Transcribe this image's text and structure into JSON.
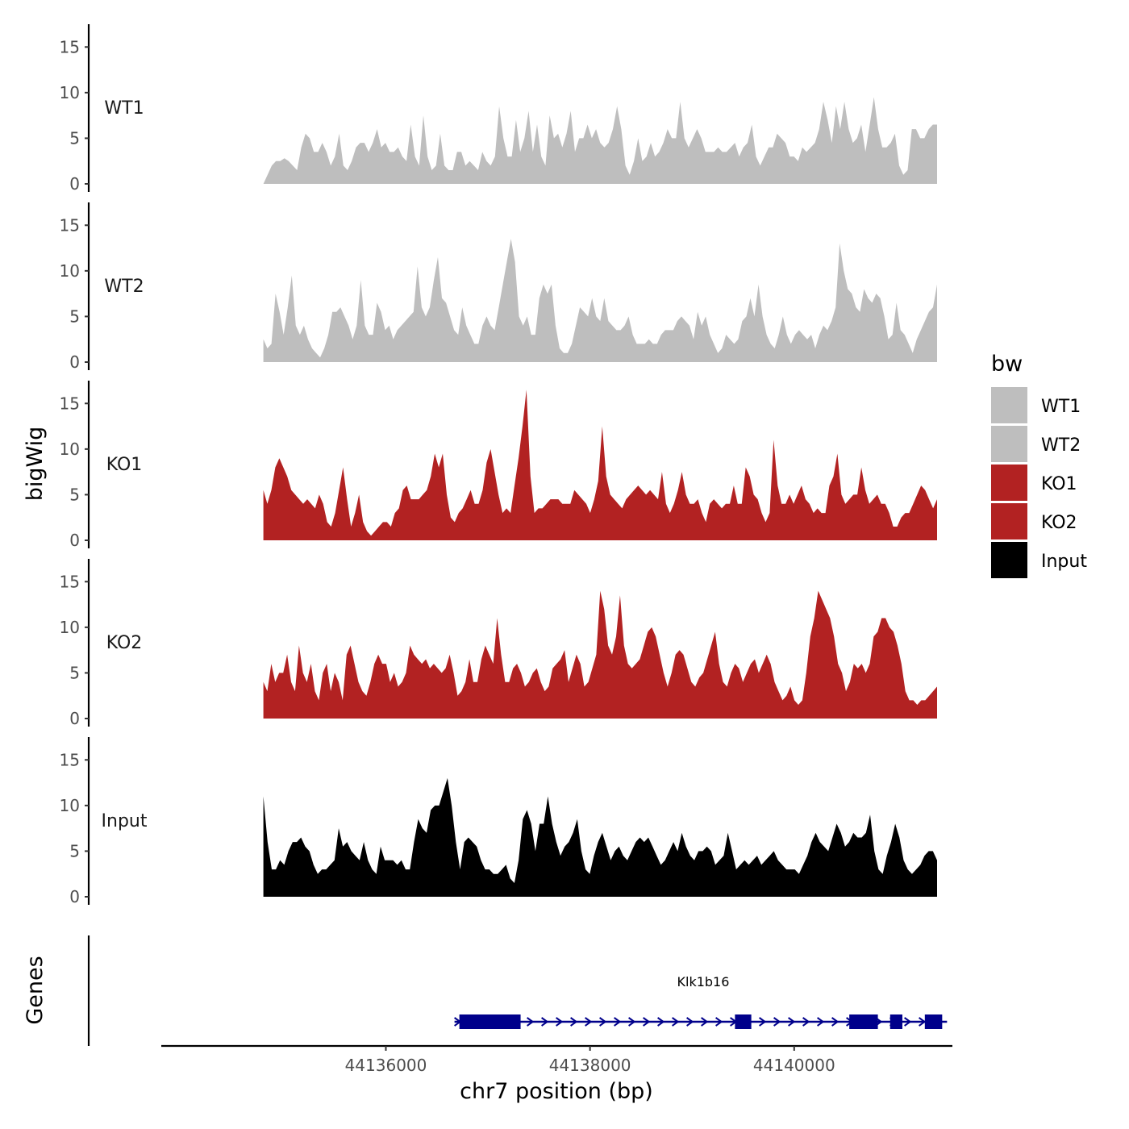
{
  "chart_data": {
    "type": "area",
    "region": {
      "chrom": "chr7",
      "start": 44134800,
      "end": 44141400
    },
    "xlim": [
      44133800,
      44141550
    ],
    "ylim": [
      0,
      17.5
    ],
    "y_ticks": [
      0,
      5,
      10,
      15
    ],
    "y_tick_labels": [
      "0",
      "5",
      "10",
      "15"
    ],
    "x_ticks": [
      44136000,
      44138000,
      44140000
    ],
    "x_tick_labels": [
      "44136000",
      "44138000",
      "44140000"
    ],
    "ylabel": "bigWig",
    "genes_label": "Genes",
    "xlabel": "chr7 position (bp)",
    "legend": {
      "title": "bw",
      "items": [
        {
          "label": "WT1",
          "color": "#BEBEBE"
        },
        {
          "label": "WT2",
          "color": "#BEBEBE"
        },
        {
          "label": "KO1",
          "color": "#B22222"
        },
        {
          "label": "KO2",
          "color": "#B22222"
        },
        {
          "label": "Input",
          "color": "#000000"
        }
      ]
    },
    "series": [
      {
        "name": "WT1",
        "color": "#BEBEBE",
        "values": [
          0,
          1,
          2,
          2.5,
          2.5,
          2.8,
          2.5,
          2,
          1.5,
          4,
          5.5,
          5,
          3.5,
          3.5,
          4.5,
          3.5,
          2,
          3,
          5.5,
          2,
          1.5,
          2.5,
          4,
          4.5,
          4.5,
          3.5,
          4.5,
          6,
          4,
          4.5,
          3.5,
          3.5,
          4,
          3,
          2.5,
          6.5,
          3,
          2,
          7.5,
          3,
          1.5,
          2,
          5.5,
          2,
          1.5,
          1.5,
          3.5,
          3.5,
          2,
          2.5,
          2,
          1.5,
          3.5,
          2.5,
          2,
          3,
          8.5,
          5,
          3,
          3,
          7,
          3.5,
          5,
          8,
          3.5,
          6.5,
          3,
          2,
          7.5,
          5,
          5.5,
          4,
          5.5,
          8,
          3.5,
          5,
          5,
          6.5,
          5,
          6,
          4.5,
          4,
          4.5,
          6,
          8.5,
          6,
          2,
          1,
          2.5,
          5,
          2.5,
          3,
          4.5,
          3,
          3.5,
          4.5,
          6,
          5,
          5,
          9,
          5,
          4,
          5,
          6,
          5,
          3.5,
          3.5,
          3.5,
          4,
          3.5,
          3.5,
          4,
          4.5,
          3,
          4,
          4.5,
          6.5,
          3,
          2,
          3,
          4,
          4,
          5.5,
          5,
          4.5,
          3,
          3,
          2.5,
          4,
          3.5,
          4,
          4.5,
          6,
          9,
          7,
          4.5,
          8.5,
          6,
          9,
          6,
          4.5,
          5,
          6.5,
          3.5,
          6.5,
          9.5,
          6,
          4,
          4,
          4.5,
          5.5,
          2,
          1,
          1.5,
          6,
          6,
          5,
          5,
          6,
          6.5,
          6.5
        ]
      },
      {
        "name": "WT2",
        "color": "#BEBEBE",
        "values": [
          2.5,
          1.5,
          2,
          7.5,
          5.5,
          3,
          6,
          9.5,
          4,
          3,
          4,
          2.5,
          1.5,
          1,
          0.5,
          1.5,
          3,
          5.5,
          5.5,
          6,
          5,
          4,
          2.5,
          4,
          9,
          4,
          3,
          3,
          6.5,
          5.5,
          3.5,
          4,
          2.5,
          3.5,
          4,
          4.5,
          5,
          5.5,
          10.5,
          6,
          5,
          6,
          9,
          11.5,
          7,
          6.5,
          5,
          3.5,
          3,
          6,
          4,
          3,
          2,
          2,
          4,
          5,
          4,
          3.5,
          6,
          8.5,
          11,
          13.5,
          11,
          5,
          4,
          5,
          3,
          3,
          7,
          8.5,
          7.5,
          8.5,
          4,
          1.5,
          1,
          1,
          2,
          4,
          6,
          5.5,
          5,
          7,
          5,
          4.5,
          7,
          4.5,
          4,
          3.5,
          3.5,
          4,
          5,
          3,
          2,
          2,
          2,
          2.5,
          2,
          2,
          3,
          3.5,
          3.5,
          3.5,
          4.5,
          5,
          4.5,
          4,
          2.5,
          5.5,
          4,
          5,
          3,
          2,
          1,
          1.5,
          3,
          2.5,
          2,
          2.5,
          4.5,
          5,
          7,
          5,
          8.5,
          5,
          3,
          2,
          1.5,
          3,
          5,
          3,
          2,
          3,
          3.5,
          3,
          2.5,
          3,
          1.5,
          3,
          4,
          3.5,
          4.5,
          6,
          13,
          10,
          8,
          7.5,
          6,
          5.5,
          8,
          7,
          6.5,
          7.5,
          7,
          5,
          2.5,
          3,
          6.5,
          3.5,
          3,
          2,
          1,
          2.5,
          3.5,
          4.5,
          5.5,
          6,
          8.5
        ]
      },
      {
        "name": "KO1",
        "color": "#B22222",
        "values": [
          5.5,
          4,
          5.5,
          8,
          9,
          8,
          7,
          5.5,
          5,
          4.5,
          4,
          4.5,
          4,
          3.5,
          5,
          4,
          2,
          1.5,
          3,
          5.5,
          8,
          4.5,
          1.5,
          3,
          5,
          2,
          1,
          0.5,
          1,
          1.5,
          2,
          2,
          1.5,
          3,
          3.5,
          5.5,
          6,
          4.5,
          4.5,
          4.5,
          5,
          5.5,
          7,
          9.5,
          8,
          9.5,
          5,
          2.5,
          2,
          3,
          3.5,
          4.5,
          5.5,
          4,
          4,
          5.5,
          8.5,
          10,
          7.5,
          5,
          3,
          3.5,
          3,
          6,
          9,
          12.5,
          16.5,
          7,
          3,
          3.5,
          3.5,
          4,
          4.5,
          4.5,
          4.5,
          4,
          4,
          4,
          5.5,
          5,
          4.5,
          4,
          3,
          4.5,
          6.5,
          12.5,
          7,
          5,
          4.5,
          4,
          3.5,
          4.5,
          5,
          5.5,
          6,
          5.5,
          5,
          5.5,
          5,
          4.5,
          7.5,
          4,
          3,
          4,
          5.5,
          7.5,
          5,
          4,
          4,
          4.5,
          3,
          2,
          4,
          4.5,
          4,
          3.5,
          4,
          4,
          6,
          4,
          4,
          8,
          7,
          5,
          4.5,
          3,
          2,
          3,
          11,
          6,
          4,
          4,
          5,
          4,
          5,
          6,
          4.5,
          4,
          3,
          3.5,
          3,
          3,
          6,
          7,
          9.5,
          5,
          4,
          4.5,
          5,
          5,
          8,
          5.5,
          4,
          4.5,
          5,
          4,
          4,
          3,
          1.5,
          1.5,
          2.5,
          3,
          3,
          4,
          5,
          6,
          5.5,
          4.5,
          3.5,
          4.5
        ]
      },
      {
        "name": "KO2",
        "color": "#B22222",
        "values": [
          4,
          3,
          6,
          4,
          5,
          5,
          7,
          4,
          3,
          8,
          5,
          4,
          6,
          3,
          2,
          5,
          6,
          3,
          5,
          4,
          2,
          7,
          8,
          6,
          4,
          3,
          2.5,
          4,
          6,
          7,
          6,
          6,
          4,
          5,
          3.5,
          4,
          5,
          8,
          7,
          6.5,
          6,
          6.5,
          5.5,
          6,
          5.5,
          5,
          5.5,
          7,
          5,
          2.5,
          3,
          4,
          6.5,
          4,
          4,
          6.5,
          8,
          7,
          6,
          11,
          7,
          4,
          4,
          5.5,
          6,
          5,
          3.5,
          4,
          5,
          5.5,
          4,
          3,
          3.5,
          5.5,
          6,
          6.5,
          7.5,
          4,
          5.5,
          7,
          6,
          3.5,
          4,
          5.5,
          7,
          14,
          12,
          8,
          7,
          9,
          13.5,
          8,
          6,
          5.5,
          6,
          6.5,
          8,
          9.5,
          10,
          9,
          7,
          5,
          3.5,
          5,
          7,
          7.5,
          7,
          5.5,
          4,
          3.5,
          4.5,
          5,
          6.5,
          8,
          9.5,
          6,
          4,
          3.5,
          5,
          6,
          5.5,
          4,
          5,
          6,
          6.5,
          5,
          6,
          7,
          6,
          4,
          3,
          2,
          2.5,
          3.5,
          2,
          1.5,
          2,
          5,
          9,
          11,
          14,
          13,
          12,
          11,
          9,
          6,
          5,
          3,
          4,
          6,
          5.5,
          6,
          5,
          6,
          9,
          9.5,
          11,
          11,
          10,
          9.5,
          8,
          6,
          3,
          2,
          2,
          1.5,
          2,
          2,
          2.5,
          3,
          3.5
        ]
      },
      {
        "name": "Input",
        "color": "#000000",
        "values": [
          11,
          6,
          3,
          3,
          4,
          3.5,
          5,
          6,
          6,
          6.5,
          5.5,
          5,
          3.5,
          2.5,
          3,
          3,
          3.5,
          4,
          7.5,
          5.5,
          6,
          5,
          4.5,
          4,
          6,
          4,
          3,
          2.5,
          5.5,
          4,
          4,
          4,
          3.5,
          4,
          3,
          3,
          6,
          8.5,
          7.5,
          7,
          9.5,
          10,
          10,
          11.5,
          13,
          10,
          6,
          3,
          6,
          6.5,
          6,
          5.5,
          4,
          3,
          3,
          2.5,
          2.5,
          3,
          3.5,
          2,
          1.5,
          4,
          8.5,
          9.5,
          8,
          5,
          8,
          8,
          11,
          8,
          6,
          4.5,
          5.5,
          6,
          7,
          8.5,
          5,
          3,
          2.5,
          4.5,
          6,
          7,
          5.5,
          4,
          5,
          5.5,
          4.5,
          4,
          5,
          6,
          6.5,
          6,
          6.5,
          5.5,
          4.5,
          3.5,
          4,
          5,
          6,
          5,
          7,
          5.5,
          4.5,
          4,
          5,
          5,
          5.5,
          5,
          3.5,
          4,
          4.5,
          7,
          5,
          3,
          3.5,
          4,
          3.5,
          4,
          4.5,
          3.5,
          4,
          4.5,
          5,
          4,
          3.5,
          3,
          3,
          3,
          2.5,
          3.5,
          4.5,
          6,
          7,
          6,
          5.5,
          5,
          6.5,
          8,
          7,
          5.5,
          6,
          7,
          6.5,
          6.5,
          7,
          9,
          5,
          3,
          2.5,
          4.5,
          6,
          8,
          6.5,
          4,
          3,
          2.5,
          3,
          3.5,
          4.5,
          5,
          5,
          4
        ]
      }
    ],
    "gene_track": {
      "genes": [
        {
          "name": "Klk1b16",
          "start": 44136720,
          "end": 44141450,
          "strand": "+",
          "exons": [
            [
              44136720,
              44137320
            ],
            [
              44139420,
              44139580
            ],
            [
              44140540,
              44140820
            ],
            [
              44140940,
              44141060
            ],
            [
              44141280,
              44141450
            ]
          ]
        }
      ],
      "color": "#00008B"
    }
  }
}
